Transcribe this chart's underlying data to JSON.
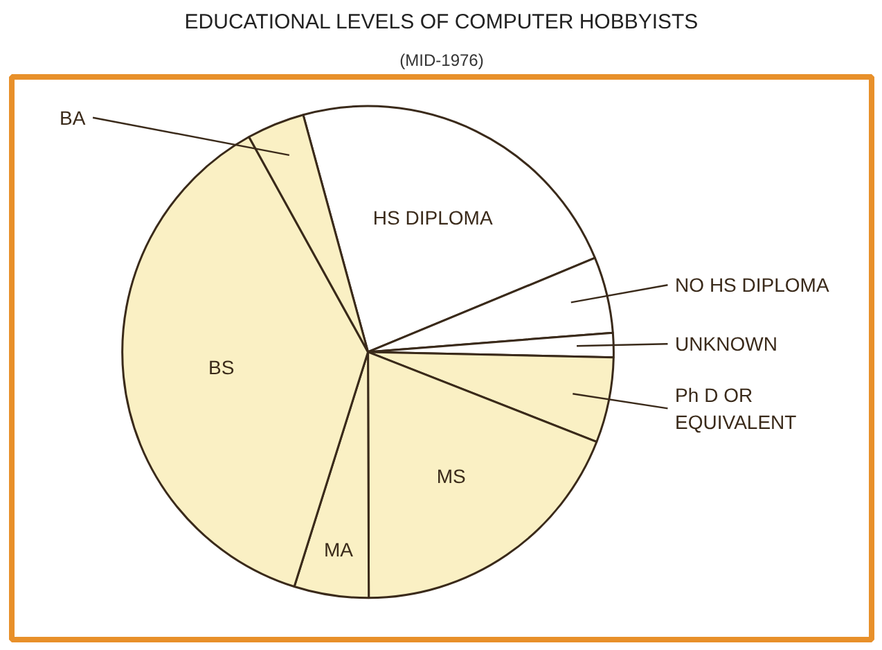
{
  "chart_data": {
    "type": "pie",
    "title": "EDUCATIONAL LEVELS OF COMPUTER HOBBYISTS",
    "subtitle": "(MID-1976)",
    "categories": [
      "HS DIPLOMA",
      "NO HS DIPLOMA",
      "UNKNOWN",
      "Ph D OR EQUIVALENT",
      "MS",
      "MA",
      "BS",
      "BA"
    ],
    "values": [
      23.0,
      5.0,
      1.6,
      5.6,
      19.0,
      4.9,
      37.1,
      3.8
    ],
    "colors": [
      "#ffffff",
      "#ffffff",
      "#ffffff",
      "#faf0c4",
      "#faf0c4",
      "#faf0c4",
      "#faf0c4",
      "#faf0c4"
    ]
  }
}
